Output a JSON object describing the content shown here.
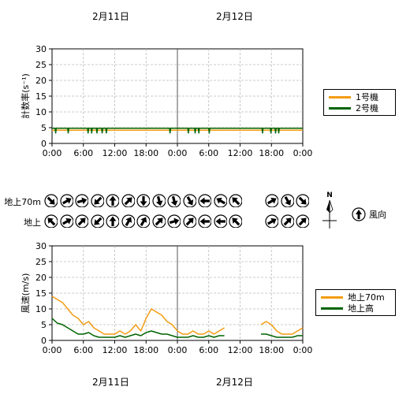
{
  "top_dates": [
    "2月11日",
    "2月12日"
  ],
  "bottom_dates": [
    "2月11日",
    "2月12日"
  ],
  "chart_data": [
    {
      "type": "line",
      "ylabel": "計数率(s⁻¹)",
      "ylim": [
        0,
        30
      ],
      "yticks": [
        "0",
        "5",
        "10",
        "15",
        "20",
        "25",
        "30"
      ],
      "xticks": [
        "0:00",
        "6:00",
        "12:00",
        "18:00",
        "0:00",
        "6:00",
        "12:00",
        "18:00",
        "0:00"
      ],
      "grid": true,
      "legend_position": "right",
      "series": [
        {
          "name": "1号機",
          "color": "#f39c12",
          "x_hours": [
            0,
            48
          ],
          "values": [
            4.2,
            4.2
          ]
        },
        {
          "name": "2号機",
          "color": "#006400",
          "x_hours": [
            0,
            0.6,
            0.7,
            0.8,
            3,
            3.1,
            3.2,
            6.8,
            6.9,
            7,
            7.5,
            7.6,
            7.7,
            8.5,
            8.6,
            8.7,
            9.5,
            9.6,
            9.7,
            10.3,
            10.4,
            10.5,
            22.5,
            22.6,
            22.7,
            26,
            26.1,
            26.2,
            27.3,
            27.4,
            27.5,
            28,
            28.1,
            28.2,
            30,
            30.1,
            30.2,
            40.2,
            40.3,
            40.4,
            41.8,
            41.9,
            42,
            42.7,
            42.8,
            42.9,
            43.3,
            43.4,
            43.5,
            48
          ],
          "values": [
            4.8,
            4.8,
            3.3,
            4.8,
            4.8,
            3.3,
            4.8,
            4.8,
            3.3,
            4.8,
            4.8,
            3.3,
            4.8,
            4.8,
            3.3,
            4.8,
            4.8,
            3.3,
            4.8,
            4.8,
            3.3,
            4.8,
            4.8,
            3.3,
            4.8,
            4.8,
            3.3,
            4.8,
            4.8,
            3.3,
            4.8,
            4.8,
            3.3,
            4.8,
            4.8,
            3.3,
            4.8,
            4.8,
            3.3,
            4.8,
            4.8,
            3.3,
            4.8,
            4.8,
            3.3,
            4.8,
            4.8,
            3.3,
            4.8,
            4.8
          ]
        }
      ]
    },
    {
      "type": "line",
      "ylabel": "風速(m/s)",
      "ylim": [
        0,
        30
      ],
      "yticks": [
        "0",
        "5",
        "10",
        "15",
        "20",
        "25",
        "30"
      ],
      "xticks": [
        "0:00",
        "6:00",
        "12:00",
        "18:00",
        "0:00",
        "6:00",
        "12:00",
        "18:00",
        "0:00"
      ],
      "grid": true,
      "legend_position": "right",
      "series": [
        {
          "name": "地上70m",
          "color": "#f39c12",
          "x_hours": [
            0,
            1,
            2,
            3,
            4,
            5,
            6,
            7,
            8,
            9,
            10,
            11,
            12,
            13,
            14,
            15,
            16,
            17,
            18,
            19,
            20,
            21,
            22,
            23,
            24,
            25,
            26,
            27,
            28,
            29,
            30,
            31,
            32,
            33,
            null,
            40,
            41,
            42,
            43,
            44,
            45,
            46,
            47,
            48
          ],
          "values": [
            14,
            13,
            12,
            10,
            8,
            7,
            5,
            6,
            4,
            3,
            2,
            2,
            2,
            3,
            2,
            3,
            5,
            3,
            7,
            10,
            9,
            8,
            6,
            5,
            3,
            2,
            2,
            3,
            2,
            2,
            3,
            2,
            3,
            4,
            null,
            5,
            6,
            5,
            3,
            2,
            2,
            2,
            3,
            4
          ]
        },
        {
          "name": "地上高",
          "color": "#006400",
          "x_hours": [
            0,
            1,
            2,
            3,
            4,
            5,
            6,
            7,
            8,
            9,
            10,
            11,
            12,
            13,
            14,
            15,
            16,
            17,
            18,
            19,
            20,
            21,
            22,
            23,
            24,
            25,
            26,
            27,
            28,
            29,
            30,
            31,
            32,
            33,
            null,
            40,
            41,
            42,
            43,
            44,
            45,
            46,
            47,
            48
          ],
          "values": [
            7,
            5.5,
            5,
            4,
            3,
            2,
            2,
            2.5,
            1.5,
            1,
            1,
            1,
            1,
            1.5,
            1,
            1.5,
            2,
            1.5,
            2.5,
            3,
            2.5,
            2,
            2,
            1.5,
            1,
            1,
            1,
            1.5,
            1,
            1,
            1.5,
            1,
            1.5,
            1.5,
            null,
            2,
            2,
            1.5,
            1,
            1,
            1,
            1,
            1.5,
            1.5
          ]
        }
      ]
    }
  ],
  "wind": {
    "row_labels": [
      "地上70m",
      "地上"
    ],
    "row70": [
      135,
      60,
      75,
      225,
      0,
      45,
      180,
      165,
      165,
      150,
      270,
      300,
      315
    ],
    "row70_right": [
      60,
      150,
      135
    ],
    "ground": [
      315,
      60,
      45,
      225,
      0,
      30,
      30,
      45,
      75,
      45,
      270,
      270,
      315
    ],
    "ground_right": [
      60,
      45,
      45
    ]
  },
  "north_label": "N",
  "wind_dir_label": "風向"
}
